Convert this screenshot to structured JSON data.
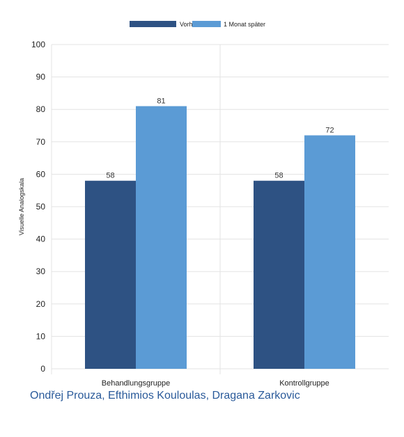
{
  "chart_data": {
    "type": "bar",
    "categories": [
      "Behandlungsgruppe",
      "Kontrollgruppe"
    ],
    "series": [
      {
        "name": "Vorher",
        "values": [
          58,
          58
        ],
        "color": "#2e5283"
      },
      {
        "name": "1 Monat später",
        "values": [
          81,
          72
        ],
        "color": "#5b9bd5"
      }
    ],
    "ylabel": "Visuelle Analogskala",
    "xlabel": "",
    "ylim": [
      0,
      100
    ],
    "yticks": [
      0,
      10,
      20,
      30,
      40,
      50,
      60,
      70,
      80,
      90,
      100
    ],
    "legend_position": "top-center",
    "grid": true
  },
  "caption": "Ondřej Prouza, Efthimios Kouloulas, Dragana Zarkovic"
}
